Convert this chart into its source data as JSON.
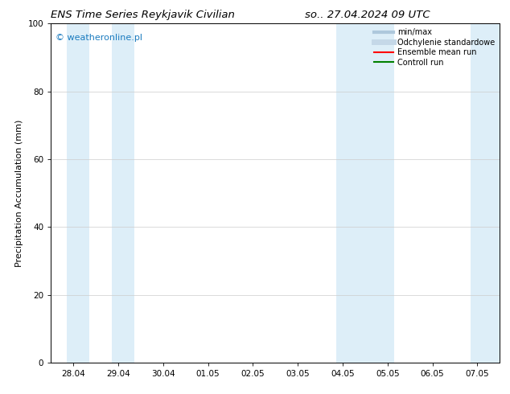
{
  "title_left": "ENS Time Series Reykjavik Civilian",
  "title_right": "so.. 27.04.2024 09 UTC",
  "ylabel": "Precipitation Accumulation (mm)",
  "ylim": [
    0,
    100
  ],
  "yticks": [
    0,
    20,
    40,
    60,
    80,
    100
  ],
  "xtick_labels": [
    "28.04",
    "29.04",
    "30.04",
    "01.05",
    "02.05",
    "03.05",
    "04.05",
    "05.05",
    "06.05",
    "07.05"
  ],
  "xtick_positions": [
    0,
    1,
    2,
    3,
    4,
    5,
    6,
    7,
    8,
    9
  ],
  "shaded_bands": [
    [
      -0.15,
      0.35
    ],
    [
      0.85,
      1.35
    ],
    [
      5.85,
      7.15
    ],
    [
      8.85,
      9.5
    ]
  ],
  "band_color": "#ddeef8",
  "watermark_text": "© weatheronline.pl",
  "watermark_color": "#1a7bbf",
  "legend_entries": [
    {
      "label": "min/max",
      "color": "#aec8dc",
      "lw": 3
    },
    {
      "label": "Odchylenie standardowe",
      "color": "#c5d8e8",
      "lw": 5
    },
    {
      "label": "Ensemble mean run",
      "color": "red",
      "lw": 1.5
    },
    {
      "label": "Controll run",
      "color": "green",
      "lw": 1.5
    }
  ],
  "bg_color": "#ffffff",
  "title_fontsize": 9.5,
  "label_fontsize": 8,
  "tick_fontsize": 7.5,
  "watermark_fontsize": 8,
  "legend_fontsize": 7
}
